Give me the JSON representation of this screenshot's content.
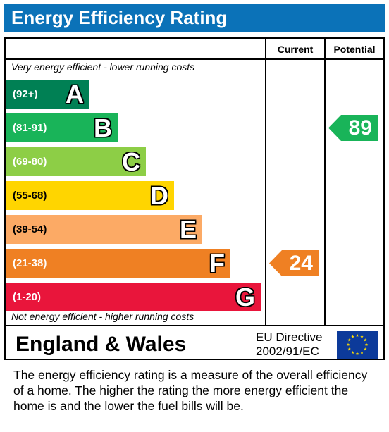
{
  "title": "Energy Efficiency Rating",
  "columns": {
    "current": "Current",
    "potential": "Potential"
  },
  "captions": {
    "top": "Very energy efficient - lower running costs",
    "bottom": "Not energy efficient - higher running costs"
  },
  "bands": [
    {
      "range": "(92+)",
      "letter": "A",
      "color": "#008054",
      "length_fraction": 0.33
    },
    {
      "range": "(81-91)",
      "letter": "B",
      "color": "#19b459",
      "length_fraction": 0.44
    },
    {
      "range": "(69-80)",
      "letter": "C",
      "color": "#8dce46",
      "length_fraction": 0.55
    },
    {
      "range": "(55-68)",
      "letter": "D",
      "color": "#ffd500",
      "length_fraction": 0.66
    },
    {
      "range": "(39-54)",
      "letter": "E",
      "color": "#fcaa65",
      "length_fraction": 0.77
    },
    {
      "range": "(21-38)",
      "letter": "F",
      "color": "#ef8023",
      "length_fraction": 0.88
    },
    {
      "range": "(1-20)",
      "letter": "G",
      "color": "#e9153b",
      "length_fraction": 1.0
    }
  ],
  "current": {
    "value": "24",
    "band": "F",
    "color": "#ef8023"
  },
  "potential": {
    "value": "89",
    "band": "B",
    "color": "#19b459"
  },
  "footer": {
    "region": "England & Wales",
    "directive_line1": "EU Directive",
    "directive_line2": "2002/91/EC",
    "flag_icon": "eu-flag-icon"
  },
  "description": "The energy efficiency rating is a measure of the overall efficiency of a home.  The higher the rating the more energy efficient the home is and the lower the fuel bills will be."
}
